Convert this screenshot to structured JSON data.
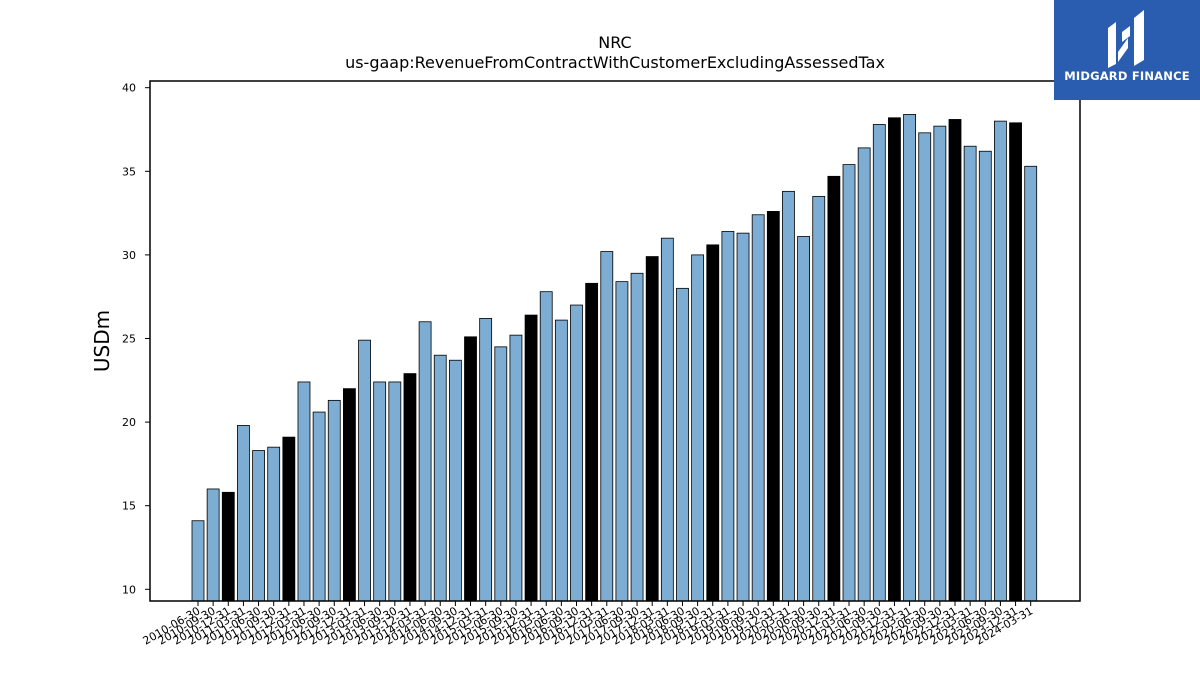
{
  "chart_data": {
    "type": "bar",
    "title": "NRC",
    "subtitle": "us-gaap:RevenueFromContractWithCustomerExcludingAssessedTax",
    "xlabel": "",
    "ylabel": "USDm",
    "ylim": [
      9.3,
      40.4
    ],
    "yticks": [
      10,
      15,
      20,
      25,
      30,
      35,
      40
    ],
    "grid": false,
    "colors": {
      "bar": "#7eadd3",
      "highlight_bar": "#000000",
      "edge": "#000000"
    },
    "categories": [
      "2010-06-30",
      "2010-09-30",
      "2010-12-31",
      "2011-03-31",
      "2011-06-30",
      "2011-09-30",
      "2011-12-31",
      "2012-03-31",
      "2012-06-30",
      "2012-09-30",
      "2012-12-31",
      "2013-03-31",
      "2013-06-30",
      "2013-09-30",
      "2013-12-31",
      "2014-03-31",
      "2014-06-30",
      "2014-09-30",
      "2014-12-31",
      "2015-03-31",
      "2015-06-30",
      "2015-09-30",
      "2015-12-31",
      "2016-03-31",
      "2016-06-30",
      "2016-09-30",
      "2016-12-31",
      "2017-03-31",
      "2017-06-30",
      "2017-09-30",
      "2017-12-31",
      "2018-03-31",
      "2018-06-30",
      "2018-09-30",
      "2018-12-31",
      "2019-03-31",
      "2019-06-30",
      "2019-09-30",
      "2019-12-31",
      "2020-03-31",
      "2020-06-30",
      "2020-09-30",
      "2020-12-31",
      "2021-03-31",
      "2021-06-30",
      "2021-09-30",
      "2021-12-31",
      "2022-03-31",
      "2022-06-30",
      "2022-09-30",
      "2022-12-31",
      "2023-03-31",
      "2023-06-30",
      "2023-09-30",
      "2023-12-31",
      "2024-03-31"
    ],
    "values": [
      14.1,
      16.0,
      15.8,
      19.8,
      18.3,
      18.5,
      19.1,
      22.4,
      20.6,
      21.3,
      22.0,
      24.9,
      22.4,
      22.4,
      22.9,
      26.0,
      24.0,
      23.7,
      25.1,
      26.2,
      24.5,
      25.2,
      26.4,
      27.8,
      26.1,
      27.0,
      28.3,
      30.2,
      28.4,
      28.9,
      29.9,
      31.0,
      28.0,
      30.0,
      30.6,
      31.4,
      31.3,
      32.4,
      32.6,
      33.8,
      31.1,
      33.5,
      34.7,
      35.4,
      36.4,
      37.8,
      38.2,
      38.4,
      37.3,
      37.7,
      38.1,
      36.5,
      36.2,
      38.0,
      37.9,
      35.3
    ],
    "highlighted": [
      false,
      false,
      true,
      false,
      false,
      false,
      true,
      false,
      false,
      false,
      true,
      false,
      false,
      false,
      true,
      false,
      false,
      false,
      true,
      false,
      false,
      false,
      true,
      false,
      false,
      false,
      true,
      false,
      false,
      false,
      true,
      false,
      false,
      false,
      true,
      false,
      false,
      false,
      true,
      false,
      false,
      false,
      true,
      false,
      false,
      false,
      true,
      false,
      false,
      false,
      true,
      false,
      false,
      false,
      true,
      false
    ]
  },
  "logo": {
    "text": "MIDGARD FINANCE",
    "icon": "midgard-logo-icon"
  }
}
